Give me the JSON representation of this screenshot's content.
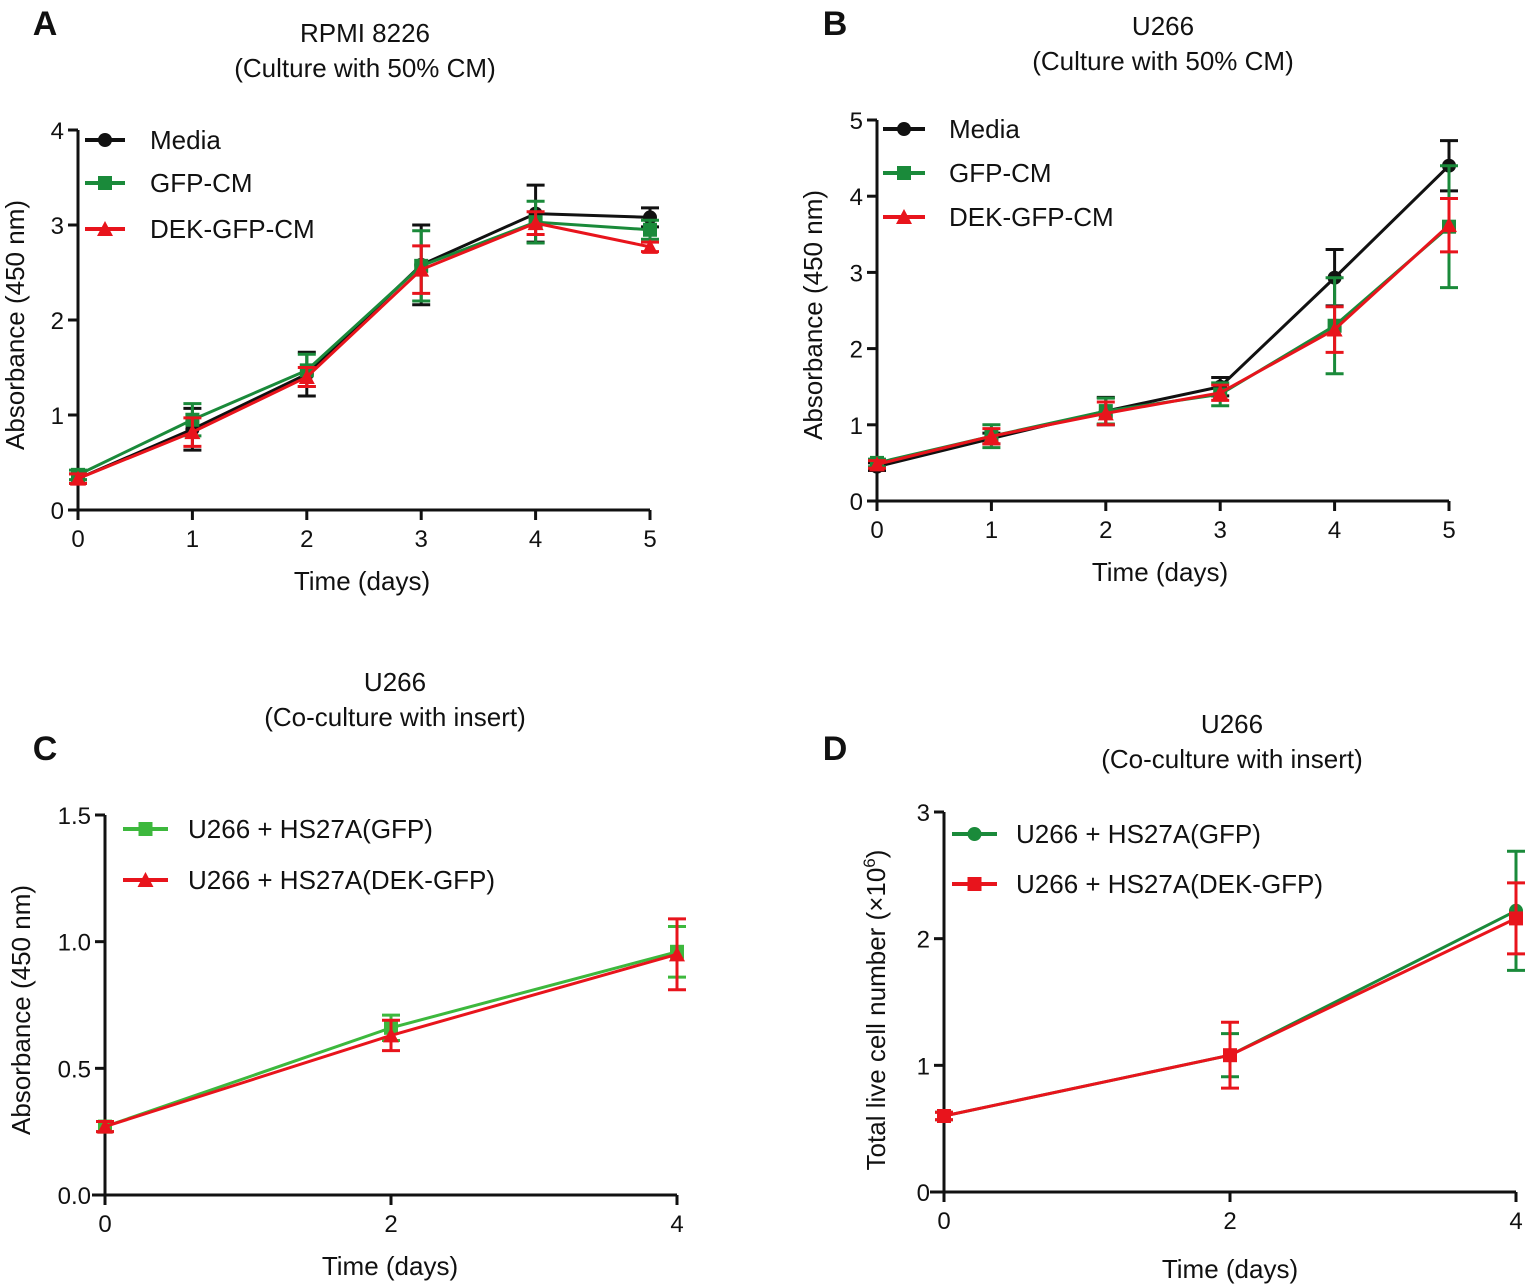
{
  "chart_data": [
    {
      "panel": "A",
      "type": "line",
      "title": [
        "RPMI 8226",
        "(Culture with 50% CM)"
      ],
      "xlabel": "Time (days)",
      "ylabel": "Absorbance (450 nm)",
      "xlim": [
        0,
        5
      ],
      "ylim": [
        0,
        4
      ],
      "xticks": [
        0,
        1,
        2,
        3,
        4,
        5
      ],
      "yticks": [
        0,
        1,
        2,
        3,
        4
      ],
      "ytick_labels": [
        "0",
        "1",
        "2",
        "3",
        "4"
      ],
      "legend": "top-left",
      "x": [
        0,
        1,
        2,
        3,
        4,
        5
      ],
      "series": [
        {
          "name": "Media",
          "color": "#111111",
          "marker": "circle",
          "values": [
            0.33,
            0.85,
            1.43,
            2.58,
            3.12,
            3.08
          ],
          "errors": [
            0.05,
            0.22,
            0.23,
            0.42,
            0.3,
            0.1
          ]
        },
        {
          "name": "GFP-CM",
          "color": "#1a8a3a",
          "marker": "square",
          "values": [
            0.37,
            0.95,
            1.47,
            2.57,
            3.03,
            2.95
          ],
          "errors": [
            0.05,
            0.17,
            0.17,
            0.37,
            0.22,
            0.1
          ]
        },
        {
          "name": "DEK-GFP-CM",
          "color": "#e8141c",
          "marker": "triangle",
          "values": [
            0.33,
            0.82,
            1.4,
            2.53,
            3.02,
            2.77
          ],
          "errors": [
            0.05,
            0.15,
            0.1,
            0.25,
            0.12,
            0.05
          ]
        }
      ]
    },
    {
      "panel": "B",
      "type": "line",
      "title": [
        "U266",
        "(Culture with 50% CM)"
      ],
      "xlabel": "Time (days)",
      "ylabel": "Absorbance (450 nm)",
      "xlim": [
        0,
        5
      ],
      "ylim": [
        0,
        5
      ],
      "xticks": [
        0,
        1,
        2,
        3,
        4,
        5
      ],
      "yticks": [
        0,
        1,
        2,
        3,
        4,
        5
      ],
      "ytick_labels": [
        "0",
        "1",
        "2",
        "3",
        "4",
        "5"
      ],
      "legend": "top-left",
      "x": [
        0,
        1,
        2,
        3,
        4,
        5
      ],
      "series": [
        {
          "name": "Media",
          "color": "#111111",
          "marker": "circle",
          "values": [
            0.45,
            0.82,
            1.18,
            1.5,
            2.93,
            4.4
          ],
          "errors": [
            0.05,
            0.07,
            0.18,
            0.12,
            0.37,
            0.33
          ]
        },
        {
          "name": "GFP-CM",
          "color": "#1a8a3a",
          "marker": "square",
          "values": [
            0.5,
            0.85,
            1.18,
            1.4,
            2.3,
            3.6
          ],
          "errors": [
            0.05,
            0.15,
            0.17,
            0.15,
            0.63,
            0.8
          ]
        },
        {
          "name": "DEK-GFP-CM",
          "color": "#e8141c",
          "marker": "triangle",
          "values": [
            0.48,
            0.85,
            1.15,
            1.42,
            2.25,
            3.62
          ],
          "errors": [
            0.05,
            0.1,
            0.15,
            0.1,
            0.3,
            0.35
          ]
        }
      ]
    },
    {
      "panel": "C",
      "type": "line",
      "title": [
        "U266",
        "(Co-culture with insert)"
      ],
      "xlabel": "Time (days)",
      "ylabel": "Absorbance (450 nm)",
      "xlim": [
        0,
        4
      ],
      "ylim": [
        0,
        1.5
      ],
      "xticks": [
        0,
        2,
        4
      ],
      "yticks": [
        0,
        0.5,
        1.0,
        1.5
      ],
      "ytick_labels": [
        "0.0",
        "0.5",
        "1.0",
        "1.5"
      ],
      "legend": "top-left",
      "x": [
        0,
        2,
        4
      ],
      "series": [
        {
          "name": "U266 + HS27A(GFP)",
          "color": "#3db83d",
          "marker": "square",
          "values": [
            0.27,
            0.66,
            0.96
          ],
          "errors": [
            0.02,
            0.05,
            0.1
          ]
        },
        {
          "name": "U266 + HS27A(DEK-GFP)",
          "color": "#e8141c",
          "marker": "triangle",
          "values": [
            0.27,
            0.63,
            0.95
          ],
          "errors": [
            0.02,
            0.06,
            0.14
          ]
        }
      ]
    },
    {
      "panel": "D",
      "type": "line",
      "title": [
        "U266",
        "(Co-culture with insert)"
      ],
      "xlabel": "Time (days)",
      "ylabel": "Total live cell number (×10",
      "ylabel_sup": "6",
      "ylabel_end": ")",
      "xlim": [
        0,
        4
      ],
      "ylim": [
        0,
        3
      ],
      "xticks": [
        0,
        2,
        4
      ],
      "yticks": [
        0,
        1,
        2,
        3
      ],
      "ytick_labels": [
        "0",
        "1",
        "2",
        "3"
      ],
      "legend": "top-left",
      "x": [
        0,
        2,
        4
      ],
      "series": [
        {
          "name": "U266 + HS27A(GFP)",
          "color": "#1a8a3a",
          "marker": "circle",
          "values": [
            0.6,
            1.08,
            2.22
          ],
          "errors": [
            0.03,
            0.17,
            0.47
          ]
        },
        {
          "name": "U266 + HS27A(DEK-GFP)",
          "color": "#e8141c",
          "marker": "square",
          "values": [
            0.6,
            1.08,
            2.16
          ],
          "errors": [
            0.03,
            0.26,
            0.28
          ]
        }
      ]
    }
  ]
}
